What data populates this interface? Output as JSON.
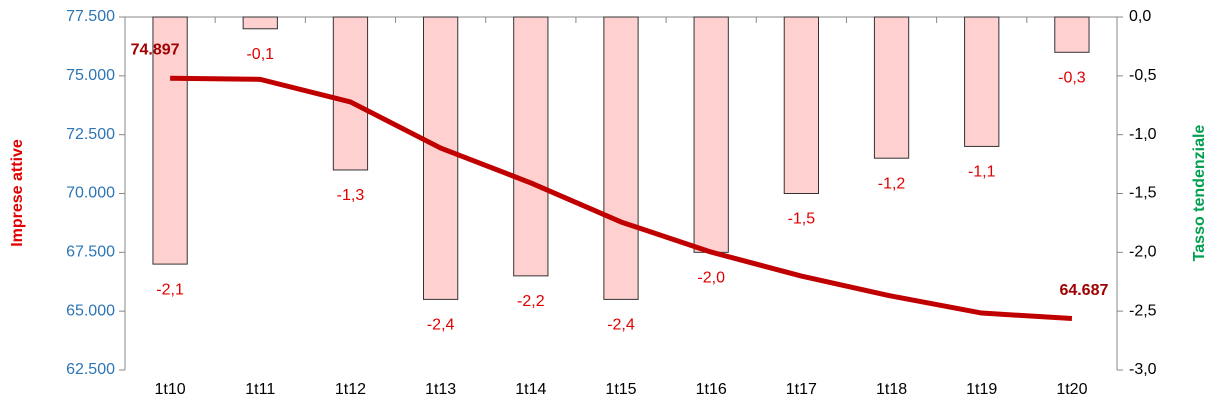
{
  "chart_data": {
    "type": "bar-line",
    "categories": [
      "1t10",
      "1t11",
      "1t12",
      "1t13",
      "1t14",
      "1t15",
      "1t16",
      "1t17",
      "1t18",
      "1t19",
      "1t20"
    ],
    "y_label": "Imprese attive",
    "y2_label": "Tasso tendenziale",
    "ylim": [
      62500,
      77500
    ],
    "yticks": [
      {
        "value": 62500,
        "label": "62.500"
      },
      {
        "value": 65000,
        "label": "65.000"
      },
      {
        "value": 67500,
        "label": "67.500"
      },
      {
        "value": 70000,
        "label": "70.000"
      },
      {
        "value": 72500,
        "label": "72.500"
      },
      {
        "value": 75000,
        "label": "75.000"
      },
      {
        "value": 77500,
        "label": "77.500"
      }
    ],
    "y2lim": [
      -3,
      0
    ],
    "y2ticks": [
      {
        "value": -3,
        "label": "-3,0"
      },
      {
        "value": -2.5,
        "label": "-2,5"
      },
      {
        "value": -2,
        "label": "-2,0"
      },
      {
        "value": -1.5,
        "label": "-1,5"
      },
      {
        "value": -1,
        "label": "-1,0"
      },
      {
        "value": -0.5,
        "label": "-0,5"
      },
      {
        "value": 0,
        "label": "0,0"
      }
    ],
    "series": [
      {
        "name": "Tasso tendenziale",
        "type": "bar",
        "axis": "y2",
        "color": "#ffd0d0",
        "values": [
          -2.1,
          -0.1,
          -1.3,
          -2.4,
          -2.2,
          -2.4,
          -2.0,
          -1.5,
          -1.2,
          -1.1,
          -0.3
        ],
        "value_labels": [
          "-2,1",
          "-0,1",
          "-1,3",
          "-2,4",
          "-2,2",
          "-2,4",
          "-2,0",
          "-1,5",
          "-1,2",
          "-1,1",
          "-0,3"
        ]
      },
      {
        "name": "Imprese attive",
        "type": "line",
        "axis": "y",
        "color": "#c00000",
        "values": [
          74897,
          74850,
          73890,
          71930,
          70450,
          68790,
          67510,
          66490,
          65640,
          64920,
          64687
        ],
        "value_labels": [
          "74.897",
          null,
          null,
          null,
          null,
          null,
          null,
          null,
          null,
          null,
          "64.687"
        ]
      }
    ]
  }
}
